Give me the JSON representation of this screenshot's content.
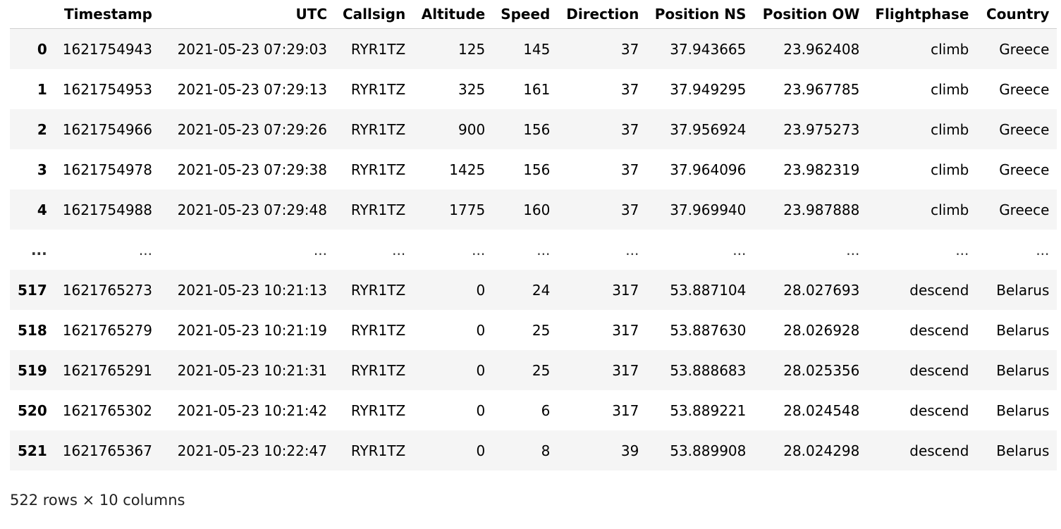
{
  "table": {
    "columns": [
      "",
      "Timestamp",
      "UTC",
      "Callsign",
      "Altitude",
      "Speed",
      "Direction",
      "Position NS",
      "Position OW",
      "Flightphase",
      "Country"
    ],
    "rows": [
      [
        "0",
        "1621754943",
        "2021-05-23 07:29:03",
        "RYR1TZ",
        "125",
        "145",
        "37",
        "37.943665",
        "23.962408",
        "climb",
        "Greece"
      ],
      [
        "1",
        "1621754953",
        "2021-05-23 07:29:13",
        "RYR1TZ",
        "325",
        "161",
        "37",
        "37.949295",
        "23.967785",
        "climb",
        "Greece"
      ],
      [
        "2",
        "1621754966",
        "2021-05-23 07:29:26",
        "RYR1TZ",
        "900",
        "156",
        "37",
        "37.956924",
        "23.975273",
        "climb",
        "Greece"
      ],
      [
        "3",
        "1621754978",
        "2021-05-23 07:29:38",
        "RYR1TZ",
        "1425",
        "156",
        "37",
        "37.964096",
        "23.982319",
        "climb",
        "Greece"
      ],
      [
        "4",
        "1621754988",
        "2021-05-23 07:29:48",
        "RYR1TZ",
        "1775",
        "160",
        "37",
        "37.969940",
        "23.987888",
        "climb",
        "Greece"
      ],
      [
        "...",
        "...",
        "...",
        "...",
        "...",
        "...",
        "...",
        "...",
        "...",
        "...",
        "..."
      ],
      [
        "517",
        "1621765273",
        "2021-05-23 10:21:13",
        "RYR1TZ",
        "0",
        "24",
        "317",
        "53.887104",
        "28.027693",
        "descend",
        "Belarus"
      ],
      [
        "518",
        "1621765279",
        "2021-05-23 10:21:19",
        "RYR1TZ",
        "0",
        "25",
        "317",
        "53.887630",
        "28.026928",
        "descend",
        "Belarus"
      ],
      [
        "519",
        "1621765291",
        "2021-05-23 10:21:31",
        "RYR1TZ",
        "0",
        "25",
        "317",
        "53.888683",
        "28.025356",
        "descend",
        "Belarus"
      ],
      [
        "520",
        "1621765302",
        "2021-05-23 10:21:42",
        "RYR1TZ",
        "0",
        "6",
        "317",
        "53.889221",
        "28.024548",
        "descend",
        "Belarus"
      ],
      [
        "521",
        "1621765367",
        "2021-05-23 10:22:47",
        "RYR1TZ",
        "0",
        "8",
        "39",
        "53.889908",
        "28.024298",
        "descend",
        "Belarus"
      ]
    ]
  },
  "shape_text": "522 rows × 10 columns",
  "colors": {
    "row_stripe": "#f5f5f5",
    "header_border": "#d0d0d0",
    "text": "#000000"
  }
}
